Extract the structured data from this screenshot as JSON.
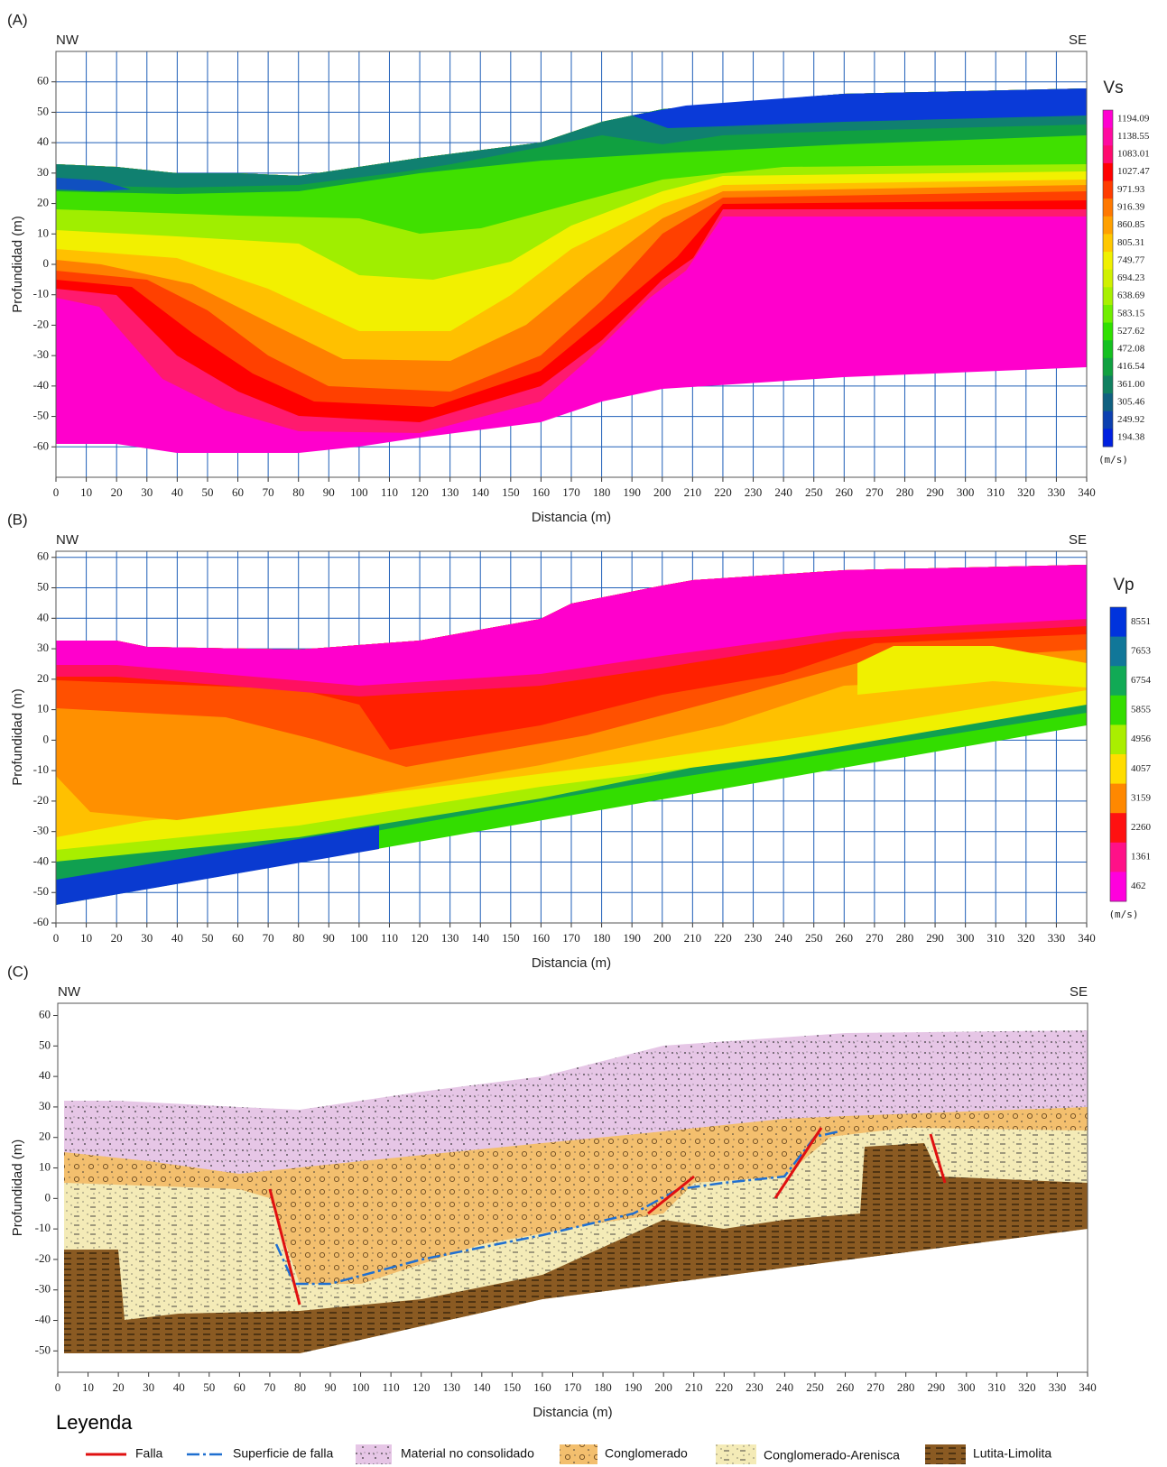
{
  "chart_data": [
    {
      "type": "contour",
      "panel_label": "(A)",
      "left_label": "NW",
      "right_label": "SE",
      "x_label": "Distancia (m)",
      "y_label": "Profundidad (m)",
      "xlim": [
        0,
        340
      ],
      "ylim": [
        -70,
        70
      ],
      "grid": true,
      "xticks": [
        0,
        10,
        20,
        30,
        40,
        50,
        60,
        70,
        80,
        90,
        100,
        110,
        120,
        130,
        140,
        150,
        160,
        170,
        180,
        190,
        200,
        210,
        220,
        230,
        240,
        250,
        260,
        270,
        280,
        290,
        300,
        310,
        320,
        330,
        340
      ],
      "yticks": [
        -60,
        -50,
        -40,
        -30,
        -20,
        -10,
        0,
        10,
        20,
        30,
        40,
        50,
        60
      ],
      "colorbar": {
        "title": "Vs",
        "unit": "(m/s)",
        "labels": [
          1194.09,
          1138.55,
          1083.01,
          1027.47,
          971.93,
          916.39,
          860.85,
          805.31,
          749.77,
          694.23,
          638.69,
          583.15,
          527.62,
          472.08,
          416.54,
          {
            "value": 361,
            "label": "361.00"
          },
          305.46,
          249.92,
          194.38
        ],
        "colors": [
          "#ff00d0",
          "#ff0aa0",
          "#ff0a6e",
          "#ff0000",
          "#ff3c00",
          "#ff7800",
          "#ffa000",
          "#ffc800",
          "#f0f000",
          "#d0f000",
          "#a8f000",
          "#70ee00",
          "#30e000",
          "#14c020",
          "#10a040",
          "#108060",
          "#106080",
          "#0c40b0",
          "#0020e0"
        ]
      }
    },
    {
      "type": "contour",
      "panel_label": "(B)",
      "left_label": "NW",
      "right_label": "SE",
      "x_label": "Distancia (m)",
      "y_label": "Profundidad (m)",
      "xlim": [
        0,
        340
      ],
      "ylim": [
        -60,
        62
      ],
      "grid": true,
      "xticks": [
        0,
        10,
        20,
        30,
        40,
        50,
        60,
        70,
        80,
        90,
        100,
        110,
        120,
        130,
        140,
        150,
        160,
        170,
        180,
        190,
        200,
        210,
        220,
        230,
        240,
        250,
        260,
        270,
        280,
        290,
        300,
        310,
        320,
        330,
        340
      ],
      "yticks": [
        -60,
        -50,
        -40,
        -30,
        -20,
        -10,
        0,
        10,
        20,
        30,
        40,
        50,
        60
      ],
      "colorbar": {
        "title": "Vp",
        "unit": "(m/s)",
        "labels": [
          8551,
          7653,
          6754,
          5855,
          4956,
          4057,
          3159,
          2260,
          1361,
          462
        ],
        "colors": [
          "#0033dd",
          "#117799",
          "#11aa55",
          "#33dd00",
          "#aaee00",
          "#ffdd00",
          "#ff8800",
          "#ff1111",
          "#ff1188",
          "#ff00dd"
        ]
      }
    },
    {
      "type": "geologic-section",
      "panel_label": "(C)",
      "left_label": "NW",
      "right_label": "SE",
      "x_label": "Distancia (m)",
      "y_label": "Profundidad (m)",
      "xlim": [
        0,
        340
      ],
      "ylim": [
        -57,
        64
      ],
      "grid": false,
      "xticks": [
        0,
        10,
        20,
        30,
        40,
        50,
        60,
        70,
        80,
        90,
        100,
        110,
        120,
        130,
        140,
        150,
        160,
        170,
        180,
        190,
        200,
        210,
        220,
        230,
        240,
        250,
        260,
        270,
        280,
        290,
        300,
        310,
        320,
        330,
        340
      ],
      "yticks": [
        -50,
        -40,
        -30,
        -20,
        -10,
        0,
        10,
        20,
        30,
        40,
        50,
        60
      ],
      "legend": {
        "title": "Leyenda",
        "items": [
          "Falla",
          "Superficie de falla",
          "Material no consolidado",
          "Conglomerado",
          "Conglomerado-Arenisca",
          "Lutita-Limolita"
        ]
      }
    }
  ]
}
